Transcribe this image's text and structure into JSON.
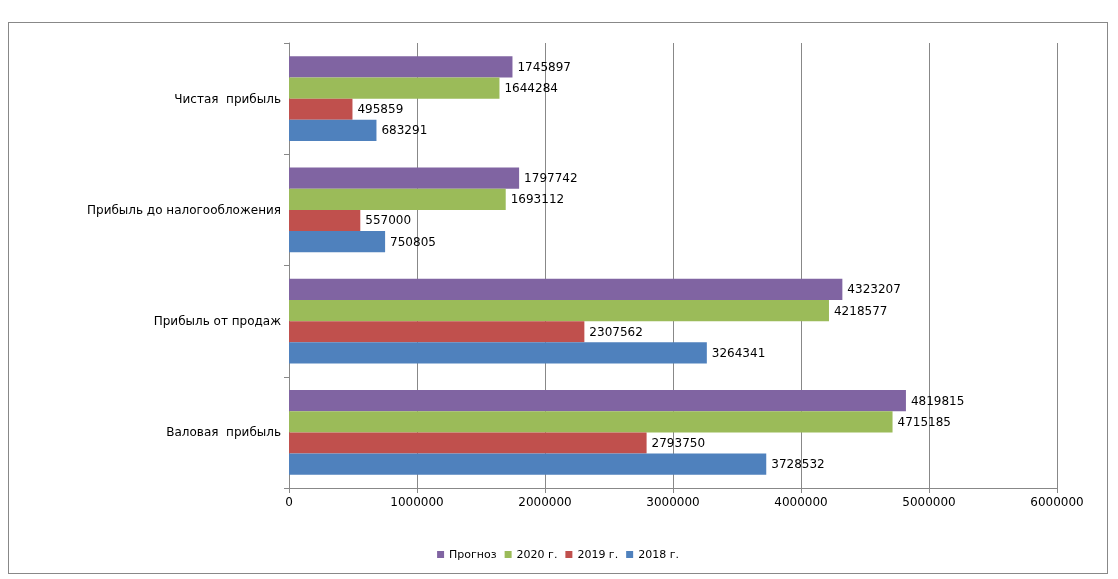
{
  "chart_data": {
    "type": "bar",
    "orientation": "horizontal",
    "categories": [
      "Чистая  прибыль",
      "Прибыль до налогообложения",
      "Прибыль от продаж",
      "Валовая  прибыль"
    ],
    "series": [
      {
        "name": "Прогноз",
        "color": "#8064a2",
        "values": [
          1745897,
          1797742,
          4323207,
          4819815
        ]
      },
      {
        "name": "2020 г.",
        "color": "#9bbb59",
        "values": [
          1644284,
          1693112,
          4218577,
          4715185
        ]
      },
      {
        "name": "2019 г.",
        "color": "#c0504d",
        "values": [
          495859,
          557000,
          2307562,
          2793750
        ]
      },
      {
        "name": "2018 г.",
        "color": "#4f81bd",
        "values": [
          683291,
          750805,
          3264341,
          3728532
        ]
      }
    ],
    "xlim": [
      0,
      6000000
    ],
    "xticks": [
      0,
      1000000,
      2000000,
      3000000,
      4000000,
      5000000,
      6000000
    ],
    "grid": "x",
    "legend": "bottom",
    "data_labels": true
  }
}
